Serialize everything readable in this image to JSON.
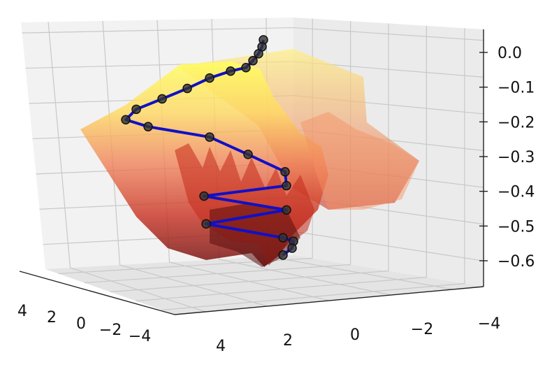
{
  "chart_data": {
    "type": "surface-3d-with-path",
    "title": "",
    "xlabel": "",
    "ylabel": "",
    "zlabel": "",
    "x_ticks": [
      "4",
      "2",
      "0",
      "−2",
      "−4"
    ],
    "y_ticks": [
      "4",
      "2",
      "0",
      "−2",
      "−4"
    ],
    "z_ticks": [
      "0.0",
      "−0.1",
      "−0.2",
      "−0.3",
      "−0.4",
      "−0.5",
      "−0.6"
    ],
    "xlim": [
      -4,
      4
    ],
    "ylim": [
      -4,
      4
    ],
    "zlim": [
      -0.65,
      0.02
    ],
    "grid": true,
    "colormap": "hot (yellow at high values, dark red at low values)",
    "path_color": "#1010c8",
    "marker_color": "#333333",
    "path_z": [
      0.0,
      -0.02,
      -0.04,
      -0.06,
      -0.08,
      -0.09,
      -0.11,
      -0.14,
      -0.17,
      -0.2,
      -0.23,
      -0.25,
      -0.28,
      -0.33,
      -0.38,
      -0.42,
      -0.45,
      -0.49,
      -0.53,
      -0.57,
      -0.58,
      -0.6,
      -0.62
    ]
  }
}
